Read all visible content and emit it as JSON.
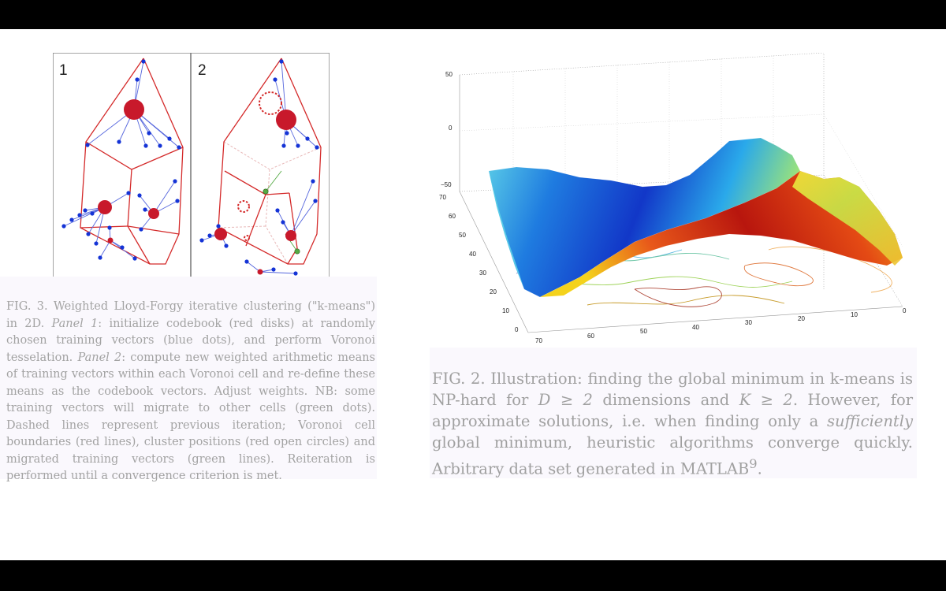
{
  "fig3": {
    "panel_labels": [
      "1",
      "2"
    ],
    "caption": {
      "p1": "FIG. 3.   Weighted Lloyd-Forgy iterative clustering (\"k-means\") in 2D. ",
      "panel1": "Panel 1",
      "p2": ": initialize codebook (red disks) at randomly chosen training vectors (blue dots), and perform Voronoi tesselation. ",
      "panel2": "Panel 2",
      "p3": ": compute new weighted arithmetic means of training vectors within each Voronoi cell and re-define these means as the codebook vectors. Adjust weights.  NB: some training vectors will migrate to other cells (green dots). Dashed lines represent previous iteration; Voronoi cell boundaries (red lines), cluster positions (red open circles) and migrated training vectors (green lines). Reiteration is performed until a convergence criterion is met."
    }
  },
  "fig2": {
    "z_ticks": [
      "50",
      "0",
      "−50"
    ],
    "y_ticks": [
      "70",
      "60",
      "50",
      "40",
      "30",
      "20",
      "10",
      "0"
    ],
    "x_ticks": [
      "70",
      "60",
      "50",
      "40",
      "30",
      "20",
      "10",
      "0"
    ],
    "caption": {
      "p1": "FIG. 2. Illustration: finding the global minimum in k-means is NP-hard for ",
      "m1": "D ≥ 2",
      "p2": " dimensions and ",
      "m2": "K ≥ 2",
      "p3": ". However, for approximate solutions, i.e.  when finding only a ",
      "emph": "sufficiently",
      "p4": " global minimum, heuristic algorithms converge quickly.  Arbitrary data set generated in MATLAB",
      "sup": "9",
      "p5": "."
    }
  },
  "colors": {
    "voronoi": "#d42a2a",
    "codebook": "#c8192b",
    "training": "#1433d6",
    "links": "#5566dd",
    "migrated": "#55aa44",
    "caption_text": "#a0a0a0",
    "caption_bg": "#faf8fd"
  }
}
